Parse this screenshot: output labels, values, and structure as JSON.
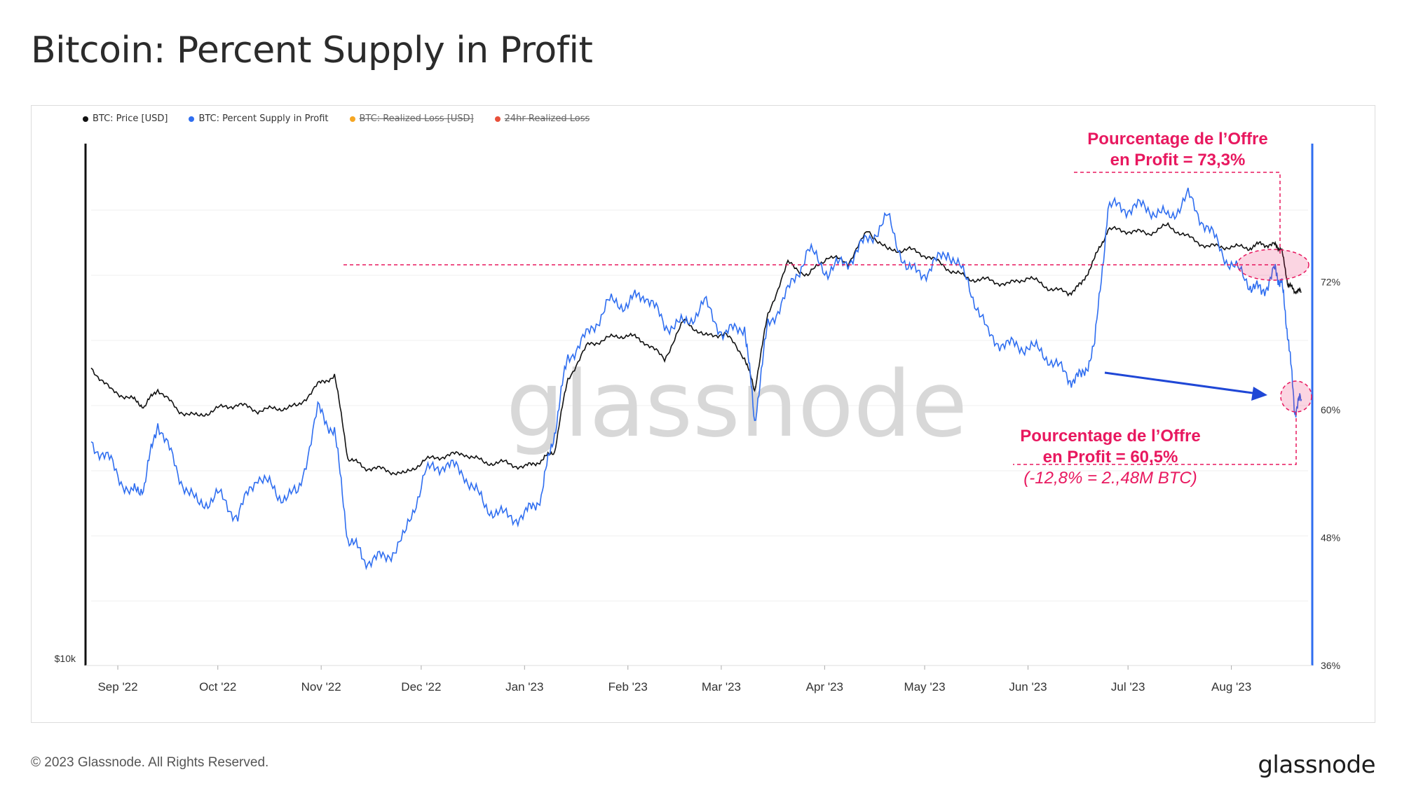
{
  "title": "Bitcoin: Percent Supply in Profit",
  "footer": {
    "copyright": "© 2023 Glassnode. All Rights Reserved.",
    "logo": "glassnode"
  },
  "watermark": "glassnode",
  "legend": [
    {
      "label": "BTC: Price [USD]",
      "color": "#111111",
      "active": true
    },
    {
      "label": "BTC: Percent Supply in Profit",
      "color": "#2f6ef0",
      "active": true
    },
    {
      "label": "BTC: Realized Loss [USD]",
      "color": "#f5a623",
      "active": false
    },
    {
      "label": "24hr Realized Loss",
      "color": "#e8503a",
      "active": false
    }
  ],
  "annotations": {
    "top_line1": "Pourcentage de l’Offre",
    "top_line2": "en Profit = 73,3%",
    "bottom_line1": "Pourcentage de l’Offre",
    "bottom_line2": "en Profit =  60,5%",
    "bottom_line3": "(-12,8% = 2.,48M BTC)",
    "color": "#e8185f"
  },
  "chart_data": {
    "type": "line",
    "x_ticks": [
      "Sep '22",
      "Oct '22",
      "Nov '22",
      "Dec '22",
      "Jan '23",
      "Feb '23",
      "Mar '23",
      "Apr '23",
      "May '23",
      "Jun '23",
      "Jul '23",
      "Aug '23"
    ],
    "left_axis": {
      "label": "$10k"
    },
    "right_axis": {
      "ticks": [
        "72%",
        "60%",
        "48%",
        "36%"
      ],
      "tick_values": [
        72,
        60,
        48,
        36
      ],
      "ylim": [
        36,
        85
      ]
    },
    "grid": true,
    "legend_position": "top-left",
    "series": [
      {
        "name": "BTC: Percent Supply in Profit",
        "color": "#2f6ef0",
        "axis": "right",
        "x": [
          "2022-08-24",
          "2022-08-30",
          "2022-09-05",
          "2022-09-09",
          "2022-09-13",
          "2022-09-19",
          "2022-09-25",
          "2022-10-01",
          "2022-10-07",
          "2022-10-13",
          "2022-10-19",
          "2022-10-25",
          "2022-10-31",
          "2022-11-05",
          "2022-11-09",
          "2022-11-14",
          "2022-11-20",
          "2022-11-26",
          "2022-12-02",
          "2022-12-08",
          "2022-12-14",
          "2022-12-20",
          "2022-12-26",
          "2023-01-01",
          "2023-01-06",
          "2023-01-10",
          "2023-01-14",
          "2023-01-20",
          "2023-01-26",
          "2023-02-01",
          "2023-02-06",
          "2023-02-12",
          "2023-02-18",
          "2023-02-24",
          "2023-03-02",
          "2023-03-08",
          "2023-03-11",
          "2023-03-15",
          "2023-03-21",
          "2023-03-27",
          "2023-04-02",
          "2023-04-08",
          "2023-04-14",
          "2023-04-20",
          "2023-04-26",
          "2023-05-02",
          "2023-05-08",
          "2023-05-14",
          "2023-05-20",
          "2023-05-26",
          "2023-06-01",
          "2023-06-07",
          "2023-06-13",
          "2023-06-17",
          "2023-06-21",
          "2023-06-25",
          "2023-07-01",
          "2023-07-07",
          "2023-07-13",
          "2023-07-19",
          "2023-07-25",
          "2023-07-31",
          "2023-08-06",
          "2023-08-10",
          "2023-08-14",
          "2023-08-16",
          "2023-08-18",
          "2023-08-20",
          "2023-08-22"
        ],
        "values": [
          57,
          55,
          52,
          53,
          59,
          54,
          51,
          52,
          50,
          54,
          52,
          52,
          60,
          58,
          48,
          46,
          46,
          48,
          54,
          55,
          54,
          51,
          50,
          50,
          52,
          58,
          65,
          67,
          70,
          70,
          71,
          68,
          68,
          70,
          67,
          68,
          59,
          68,
          71,
          75,
          73,
          74,
          76,
          78,
          73,
          73,
          75,
          72,
          67,
          66,
          66,
          65,
          63,
          63,
          66,
          79,
          79,
          79,
          78,
          80,
          77,
          74,
          72,
          71,
          73,
          72,
          67,
          60,
          61
        ]
      },
      {
        "name": "BTC: Price [USD]",
        "color": "#111111",
        "axis": "left",
        "x": [
          "2022-08-24",
          "2022-08-30",
          "2022-09-05",
          "2022-09-09",
          "2022-09-13",
          "2022-09-19",
          "2022-09-25",
          "2022-10-01",
          "2022-10-07",
          "2022-10-13",
          "2022-10-19",
          "2022-10-25",
          "2022-10-31",
          "2022-11-05",
          "2022-11-09",
          "2022-11-14",
          "2022-11-20",
          "2022-11-26",
          "2022-12-02",
          "2022-12-08",
          "2022-12-14",
          "2022-12-20",
          "2022-12-26",
          "2023-01-01",
          "2023-01-06",
          "2023-01-10",
          "2023-01-14",
          "2023-01-20",
          "2023-01-26",
          "2023-02-01",
          "2023-02-06",
          "2023-02-12",
          "2023-02-18",
          "2023-02-24",
          "2023-03-02",
          "2023-03-08",
          "2023-03-11",
          "2023-03-15",
          "2023-03-21",
          "2023-03-27",
          "2023-04-02",
          "2023-04-08",
          "2023-04-14",
          "2023-04-20",
          "2023-04-26",
          "2023-05-02",
          "2023-05-08",
          "2023-05-14",
          "2023-05-20",
          "2023-05-26",
          "2023-06-01",
          "2023-06-07",
          "2023-06-13",
          "2023-06-17",
          "2023-06-21",
          "2023-06-25",
          "2023-07-01",
          "2023-07-07",
          "2023-07-13",
          "2023-07-19",
          "2023-07-25",
          "2023-07-31",
          "2023-08-06",
          "2023-08-10",
          "2023-08-14",
          "2023-08-16",
          "2023-08-18",
          "2023-08-20",
          "2023-08-22"
        ],
        "values": [
          21400,
          20200,
          19800,
          19400,
          20300,
          19200,
          18900,
          19300,
          19500,
          19200,
          19300,
          19400,
          20500,
          21000,
          17000,
          16600,
          16500,
          16300,
          16900,
          17100,
          17200,
          16800,
          16800,
          16600,
          16900,
          17300,
          20800,
          22700,
          23100,
          23300,
          22900,
          21900,
          24200,
          23200,
          23400,
          22000,
          20200,
          24500,
          28000,
          27100,
          28500,
          28000,
          30400,
          28900,
          29000,
          28500,
          27600,
          26900,
          26800,
          26500,
          27000,
          26300,
          25900,
          26500,
          28300,
          30500,
          30400,
          30200,
          30800,
          29900,
          29200,
          29200,
          29100,
          29400,
          29300,
          29000,
          26500,
          26100,
          26000
        ]
      }
    ]
  }
}
